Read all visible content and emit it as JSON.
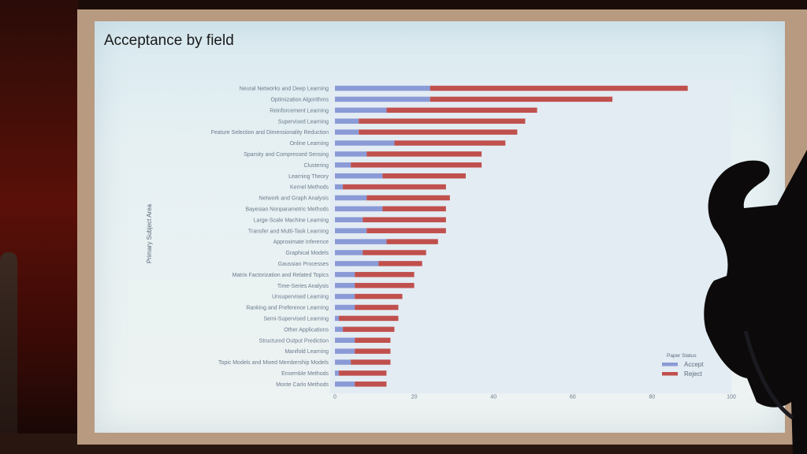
{
  "slide": {
    "title": "Acceptance by field"
  },
  "chart_data": {
    "type": "bar",
    "orientation": "horizontal",
    "stacked": true,
    "title": "Acceptance by field",
    "ylabel": "Primary Subject Area",
    "xlabel": "",
    "xlim": [
      0,
      100
    ],
    "xticks": [
      0,
      20,
      40,
      60,
      80,
      100
    ],
    "legend": {
      "title": "Paper Status",
      "position": "bottom-right"
    },
    "categories": [
      "Neural Networks and Deep Learning",
      "Optimization Algorithms",
      "Reinforcement Learning",
      "Supervised Learning",
      "Feature Selection and Dimensionality Reduction",
      "Online Learning",
      "Sparsity and Compressed Sensing",
      "Clustering",
      "Learning Theory",
      "Kernel Methods",
      "Network and Graph Analysis",
      "Bayesian Nonparametric Methods",
      "Large-Scale Machine Learning",
      "Transfer and Multi-Task Learning",
      "Approximate Inference",
      "Graphical Models",
      "Gaussian Processes",
      "Matrix Factorization and Related Topics",
      "Time-Series Analysis",
      "Unsupervised Learning",
      "Ranking and Preference Learning",
      "Semi-Supervised Learning",
      "Other Applications",
      "Structured Output Prediction",
      "Manifold Learning",
      "Topic Models and Mixed Membership Models",
      "Ensemble Methods",
      "Monte Carlo Methods"
    ],
    "series": [
      {
        "name": "Accept",
        "color": "#8a9ad6",
        "values": [
          24,
          24,
          13,
          6,
          6,
          15,
          8,
          4,
          12,
          2,
          8,
          12,
          7,
          8,
          13,
          7,
          11,
          5,
          5,
          5,
          5,
          1,
          2,
          5,
          5,
          4,
          1,
          5
        ]
      },
      {
        "name": "Reject",
        "color": "#c0504d",
        "values": [
          65,
          46,
          38,
          42,
          40,
          28,
          29,
          33,
          21,
          26,
          21,
          16,
          21,
          20,
          13,
          16,
          11,
          15,
          15,
          12,
          11,
          15,
          13,
          9,
          9,
          10,
          12,
          8
        ]
      }
    ],
    "grid": false
  }
}
